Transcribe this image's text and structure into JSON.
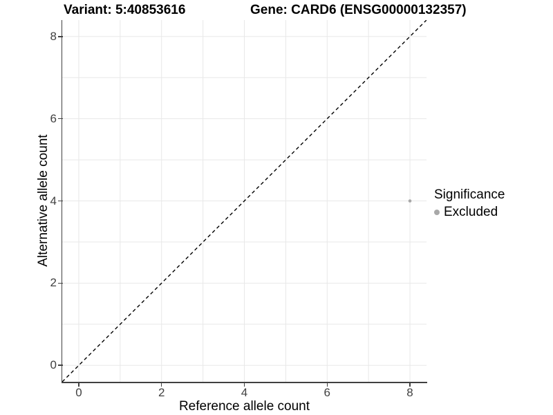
{
  "chart_data": {
    "type": "scatter",
    "titles": {
      "variant": "Variant: 5:40853616",
      "gene": "Gene: CARD6 (ENSG00000132357)"
    },
    "xlabel": "Reference allele count",
    "ylabel": "Alternative allele count",
    "xlim": [
      -0.4,
      8.4
    ],
    "ylim": [
      -0.4,
      8.4
    ],
    "xticks": [
      0,
      2,
      4,
      6,
      8
    ],
    "yticks": [
      0,
      2,
      4,
      6,
      8
    ],
    "grid_positions": [
      0,
      1,
      2,
      3,
      4,
      5,
      6,
      7,
      8
    ],
    "grid_on": true,
    "grid_color": "#e8e8e8",
    "axis_color": "#404040",
    "identity_line": {
      "equation": "y = x",
      "style": "dashed",
      "color": "#000000"
    },
    "series": [
      {
        "name": "Excluded",
        "color": "#a8a8a8",
        "points": [
          {
            "x": 8,
            "y": 4
          }
        ]
      }
    ],
    "legend": {
      "title": "Significance",
      "position": "right",
      "items": [
        {
          "label": "Excluded",
          "color": "#a8a8a8"
        }
      ]
    }
  }
}
